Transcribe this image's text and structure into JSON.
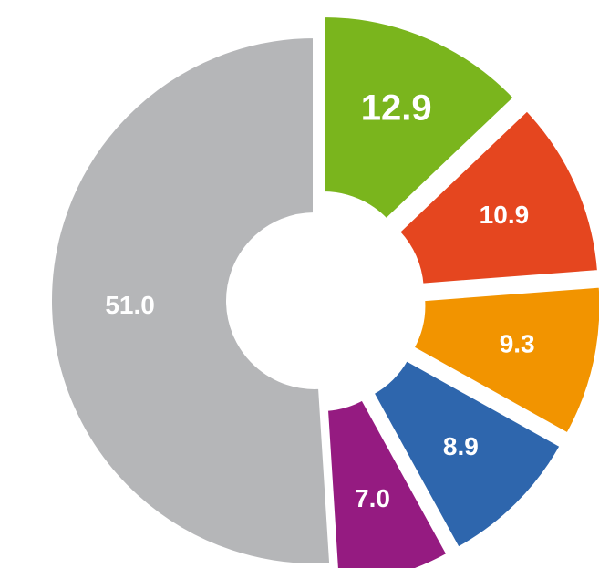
{
  "chart_data": {
    "type": "donut",
    "values": [
      12.9,
      10.9,
      9.3,
      8.9,
      7.0,
      51.0
    ],
    "value_labels": [
      "12.9",
      "10.9",
      "9.3",
      "8.9",
      "7.0",
      "51.0"
    ],
    "colors": [
      "#7ab51d",
      "#e5461f",
      "#f29400",
      "#2e66ad",
      "#951b81",
      "#b5b6b8"
    ]
  }
}
